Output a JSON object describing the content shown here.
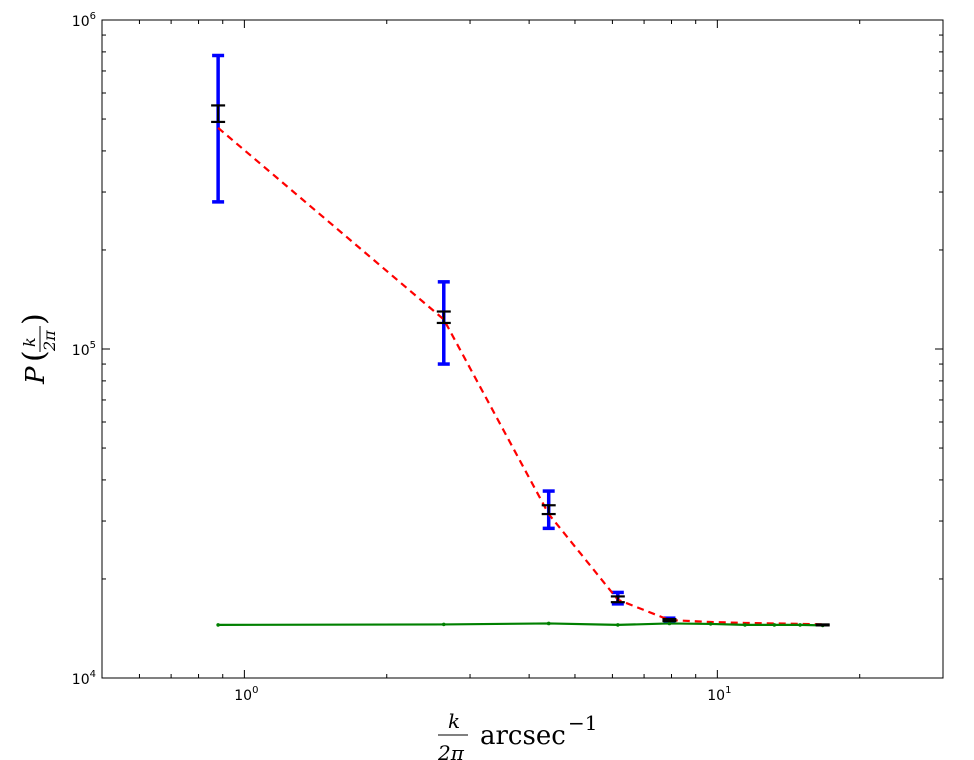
{
  "chart_data": {
    "type": "scatter",
    "xscale": "log",
    "yscale": "log",
    "xlim": [
      0.5,
      30
    ],
    "ylim": [
      10000,
      1000000
    ],
    "grid": false,
    "xlabel": "k/2π arcsec⁻¹",
    "ylabel": "P(k/2π)",
    "x_ticks": [
      {
        "value": 1,
        "base": "10",
        "exp": "0"
      },
      {
        "value": 10,
        "base": "10",
        "exp": "1"
      }
    ],
    "y_ticks": [
      {
        "value": 10000,
        "base": "10",
        "exp": "4"
      },
      {
        "value": 100000,
        "base": "10",
        "exp": "5"
      },
      {
        "value": 1000000,
        "base": "10",
        "exp": "6"
      }
    ],
    "series": [
      {
        "style": "errorbar",
        "color": "#0000ff",
        "x": [
          0.88,
          2.64,
          4.4,
          6.16,
          7.92
        ],
        "y": [
          520000,
          125000,
          32500,
          17500,
          15000
        ],
        "yerr_low": [
          280000,
          90000,
          28500,
          16800,
          14800
        ],
        "yerr_high": [
          780000,
          160000,
          37000,
          18200,
          15200
        ]
      },
      {
        "style": "errorbar",
        "color": "#000000",
        "x": [
          0.88,
          2.64,
          4.4,
          6.16,
          7.92,
          16.7
        ],
        "y": [
          520000,
          125000,
          32500,
          17300,
          15000,
          14500
        ],
        "yerr_low": [
          490000,
          120000,
          31500,
          17000,
          14900,
          14450
        ],
        "yerr_high": [
          550000,
          130000,
          33500,
          17700,
          15100,
          14550
        ]
      },
      {
        "style": "dashed-line",
        "color": "#ff0000",
        "x": [
          0.88,
          2.64,
          4.4,
          6.16,
          7.92,
          9.68,
          11.44,
          13.2,
          14.96,
          16.7
        ],
        "y": [
          470000,
          123000,
          31500,
          17300,
          15000,
          14800,
          14700,
          14650,
          14600,
          14550
        ]
      },
      {
        "style": "solid-line",
        "color": "#008000",
        "x": [
          0.88,
          2.64,
          4.4,
          6.16,
          7.92,
          9.68,
          11.44,
          13.2,
          14.96,
          16.7
        ],
        "y": [
          14500,
          14550,
          14650,
          14500,
          14650,
          14600,
          14500,
          14500,
          14500,
          14450
        ]
      }
    ]
  }
}
